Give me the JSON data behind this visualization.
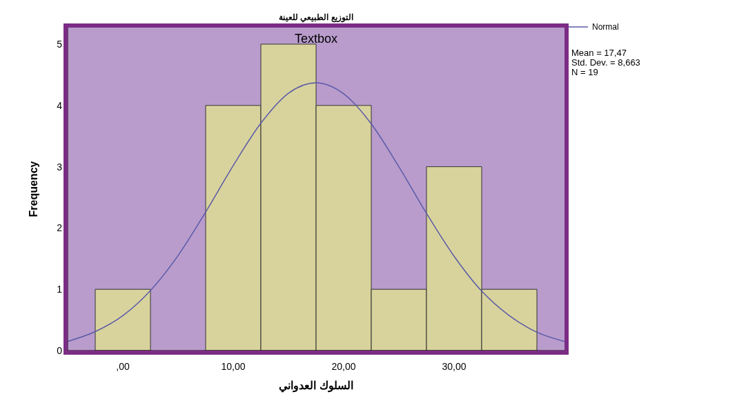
{
  "chart_data": {
    "type": "histogram",
    "title": "التوزيع الطبيعي للعينة",
    "xlabel": "السلوك العدواني",
    "ylabel": "Frequency",
    "bins": [
      -2.5,
      2.5,
      7.5,
      12.5,
      17.5,
      22.5,
      27.5,
      32.5,
      37.5
    ],
    "values": [
      1,
      0,
      4,
      5,
      4,
      1,
      3,
      1
    ],
    "color": "#d8d39c",
    "series": [
      {
        "type": "line",
        "name": "Normal",
        "color": "#5a5aa8",
        "x": [
          -5,
          -2.5,
          0,
          2.5,
          5,
          7.5,
          10,
          12.5,
          15,
          17.5,
          20,
          22.5,
          25,
          27.5,
          30,
          32.5,
          35,
          37.5,
          40
        ],
        "values": [
          0.15,
          0.31,
          0.57,
          0.98,
          1.55,
          2.26,
          3.02,
          3.71,
          4.2,
          4.37,
          4.19,
          3.7,
          3.0,
          2.24,
          1.54,
          0.97,
          0.57,
          0.3,
          0.15
        ]
      }
    ],
    "xlim": [
      -5,
      40
    ],
    "xticks": [
      {
        "value": 0,
        "label": ",00"
      },
      {
        "value": 10,
        "label": "10,00"
      },
      {
        "value": 20,
        "label": "20,00"
      },
      {
        "value": 30,
        "label": "30,00"
      }
    ],
    "ylim": [
      0,
      5.27
    ],
    "yticks": [
      0,
      1,
      2,
      3,
      4,
      5
    ],
    "legend": "top right",
    "annotations": [
      "Textbox",
      "Mean = 17,47",
      "Std. Dev. = 8,663",
      "N = 19"
    ]
  }
}
